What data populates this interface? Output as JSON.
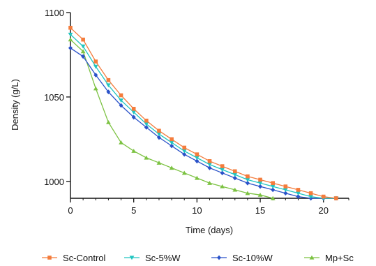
{
  "chart_data": {
    "type": "line",
    "title": "",
    "xlabel": "Time (days)",
    "ylabel": "Density (g/L)",
    "xlim": [
      0,
      22
    ],
    "ylim": [
      990,
      1100
    ],
    "xticks": [
      0,
      5,
      10,
      15,
      20
    ],
    "yticks": [
      1000,
      1050,
      1100
    ],
    "grid": false,
    "legend_position": "bottom",
    "series": [
      {
        "name": "Sc-Control",
        "color": "#f47c3c",
        "marker": "square",
        "x": [
          0,
          1,
          2,
          3,
          4,
          5,
          6,
          7,
          8,
          9,
          10,
          11,
          12,
          13,
          14,
          15,
          16,
          17,
          18,
          19,
          20,
          21
        ],
        "y": [
          1091,
          1084,
          1071,
          1060,
          1051,
          1043,
          1036,
          1030,
          1025,
          1020,
          1016,
          1012,
          1009,
          1006,
          1003,
          1001,
          999,
          997,
          995,
          993,
          991,
          990
        ]
      },
      {
        "name": "Sc-5%W",
        "color": "#20c5c0",
        "marker": "triangle-down",
        "x": [
          0,
          1,
          2,
          3,
          4,
          5,
          6,
          7,
          8,
          9,
          10,
          11,
          12,
          13,
          14,
          15,
          16,
          17,
          18,
          19,
          20,
          21
        ],
        "y": [
          1087,
          1080,
          1068,
          1057,
          1048,
          1041,
          1034,
          1028,
          1023,
          1018,
          1014,
          1010,
          1007,
          1004,
          1001,
          999,
          997,
          995,
          993,
          991,
          990,
          990
        ]
      },
      {
        "name": "Sc-10%W",
        "color": "#2a52c9",
        "marker": "diamond",
        "x": [
          0,
          1,
          2,
          3,
          4,
          5,
          6,
          7,
          8,
          9,
          10,
          11,
          12,
          13,
          14,
          15,
          16,
          17,
          18,
          19,
          20,
          21
        ],
        "y": [
          1079,
          1074,
          1063,
          1053,
          1045,
          1038,
          1032,
          1026,
          1021,
          1016,
          1012,
          1008,
          1005,
          1002,
          999,
          997,
          995,
          993,
          991,
          990,
          990,
          990
        ]
      },
      {
        "name": "Mp+Sc",
        "color": "#7cc242",
        "marker": "triangle-up",
        "x": [
          0,
          1,
          2,
          3,
          4,
          5,
          6,
          7,
          8,
          9,
          10,
          11,
          12,
          13,
          14,
          15,
          16
        ],
        "y": [
          1084,
          1077,
          1055,
          1035,
          1023,
          1018,
          1014,
          1011,
          1008,
          1005,
          1002,
          999,
          997,
          995,
          993,
          992,
          990
        ]
      }
    ]
  }
}
